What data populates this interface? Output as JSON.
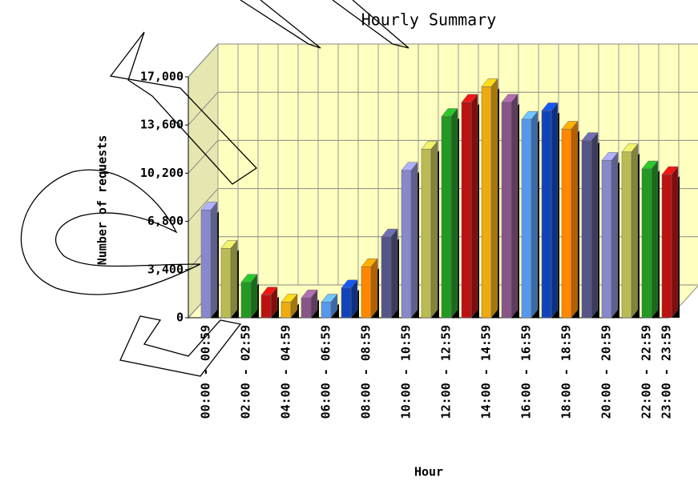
{
  "chart_data": {
    "type": "bar3d",
    "title": "Hourly Summary",
    "x_label": "Hour",
    "y_label": "Number of requests",
    "categories": [
      "00:00 - 00:59",
      null,
      "02:00 - 02:59",
      null,
      "04:00 - 04:59",
      null,
      "06:00 - 06:59",
      null,
      "08:00 - 08:59",
      null,
      "10:00 - 10:59",
      null,
      "12:00 - 12:59",
      null,
      "14:00 - 14:59",
      null,
      "16:00 - 16:59",
      null,
      "18:00 - 18:59",
      null,
      "20:00 - 20:59",
      null,
      "22:00 - 22:59",
      "23:00 - 23:59"
    ],
    "values": [
      7600,
      4900,
      2500,
      1600,
      1100,
      1400,
      1100,
      2100,
      3600,
      5700,
      10400,
      11900,
      14200,
      15200,
      16300,
      15200,
      14000,
      14600,
      13300,
      12500,
      11100,
      11700,
      10500,
      10100
    ],
    "colors": [
      "#8888cc",
      "#bbbb55",
      "#229922",
      "#bb1111",
      "#eeaa11",
      "#885588",
      "#5599ee",
      "#1144bb",
      "#ff8800",
      "#555588",
      "#8888cc",
      "#bbbb55",
      "#229922",
      "#bb1111",
      "#eeaa11",
      "#885588",
      "#5599ee",
      "#1144bb",
      "#ff8800",
      "#555588",
      "#8888cc",
      "#bbbb55",
      "#229922",
      "#bb1111"
    ],
    "ylim": [
      0,
      17000
    ],
    "yticks": [
      0,
      {
        "value": 3400,
        "label": "3,400"
      },
      {
        "value": 6800,
        "label": "6,800"
      },
      {
        "value": 10200,
        "label": "10,200"
      },
      {
        "value": 13600,
        "label": "13,600"
      },
      {
        "value": 17000,
        "label": "17,000"
      }
    ],
    "grid": true,
    "wall_color": "#ffffc0"
  }
}
